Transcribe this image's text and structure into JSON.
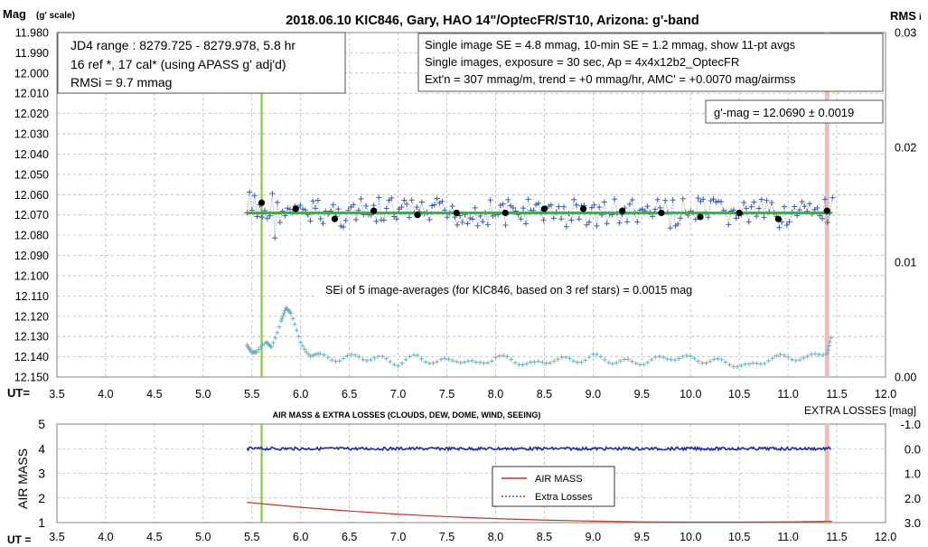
{
  "title": "2018.06.10  KIC846,  Gary,  HAO 14\"/OptecFR/ST10,  Arizona:  g'-band",
  "top_chart": {
    "ylabel_left": "Mag",
    "ylabel_left_sub": "(g' scale)",
    "ylabel_right": "RMS",
    "ylabel_right_sub": "i",
    "xlabel": "UT=",
    "info_left": [
      "JD4 range : 8279.725 - 8279.978,  5.8  hr",
      "16 ref *, 17 cal* (using APASS g' adj'd)",
      "RMSi = 9.7 mmag"
    ],
    "info_right": [
      "Single image SE = 4.8 mmag, 10-min SE = 1.2 mmag, show  11-pt avgs",
      "Single images, exposure = 30 sec, Ap = 4x4x12b2_OptecFR",
      "Ext'n = 307 mmag/m, trend =  +0 mmag/hr, AMC' = +0.0070 mag/airmss"
    ],
    "gmag_box": "g'-mag = 12.0690 ± 0.0019",
    "sei_note": "SEi of 5 image-averages (for KIC846, based on 3 ref stars) = 0.0015  mag"
  },
  "bottom_chart": {
    "title": "AIR MASS & EXTRA LOSSES (CLOUDS, DEW, DOME, WIND, SEEING)",
    "ylabel_left": "AIR MASS",
    "ylabel_right": "EXTRA LOSSES [mag]",
    "xlabel": "UT =",
    "legend": [
      "AIR MASS",
      "Extra Losses"
    ]
  },
  "colors": {
    "points": "#3a5fa8",
    "avg": "#000000",
    "fit": "#4fa35a",
    "rms": "#6fb0bf",
    "green_marker": "#8cc63f",
    "pink_marker": "#f3b9bb",
    "airmass": "#c0392b",
    "losses": "#1f2f9a",
    "grid": "#b8b8b8"
  },
  "chart_data": [
    {
      "type": "scatter",
      "x_ticks": [
        "3.5",
        "4.0",
        "4.5",
        "5.0",
        "5.5",
        "6.0",
        "6.5",
        "7.0",
        "7.5",
        "8.0",
        "8.5",
        "9.0",
        "9.5",
        "10.0",
        "10.5",
        "11.0",
        "11.5",
        "12.0"
      ],
      "y_ticks": [
        "11.980",
        "11.990",
        "12.000",
        "12.010",
        "12.020",
        "12.030",
        "12.040",
        "12.050",
        "12.060",
        "12.070",
        "12.080",
        "12.090",
        "12.100",
        "12.110",
        "12.120",
        "12.130",
        "12.140",
        "12.150"
      ],
      "y2_ticks": [
        "0.03",
        "0.02",
        "0.01",
        "0.00"
      ],
      "xlim": [
        3.5,
        12.0
      ],
      "ylim": [
        11.98,
        12.15
      ],
      "y_inverted": true,
      "y2lim": [
        0,
        0.03
      ],
      "vertical_markers": [
        5.6,
        11.4
      ],
      "fit_line": {
        "x": [
          5.45,
          11.45
        ],
        "y": [
          12.069,
          12.069
        ]
      },
      "series": [
        {
          "name": "11-pt avgs",
          "x": [
            5.6,
            5.95,
            6.35,
            6.75,
            7.2,
            7.6,
            8.1,
            8.5,
            8.9,
            9.3,
            9.7,
            10.1,
            10.5,
            10.9,
            11.4
          ],
          "y": [
            12.064,
            12.067,
            12.072,
            12.068,
            12.07,
            12.069,
            12.069,
            12.067,
            12.067,
            12.068,
            12.069,
            12.071,
            12.069,
            12.072,
            12.068
          ]
        },
        {
          "x": [
            5.45,
            5.5,
            5.55,
            5.65,
            5.7,
            5.8,
            5.85,
            5.9,
            6.0,
            6.1,
            6.2,
            6.4,
            6.6,
            6.8,
            7.0,
            7.2,
            7.4,
            7.6,
            7.8,
            8.0,
            8.2,
            8.4,
            8.6,
            8.8,
            9.0,
            9.2,
            9.4,
            9.6,
            9.8,
            10.0,
            10.2,
            10.4,
            10.6,
            10.8,
            11.0,
            11.2,
            11.4,
            11.45
          ],
          "y": [
            12.133,
            12.138,
            12.139,
            12.133,
            12.134,
            12.122,
            12.117,
            12.12,
            12.132,
            12.139,
            12.14,
            12.141,
            12.14,
            12.141,
            12.143,
            12.14,
            12.143,
            12.141,
            12.144,
            12.14,
            12.142,
            12.144,
            12.141,
            12.142,
            12.14,
            12.142,
            12.143,
            12.142,
            12.14,
            12.141,
            12.142,
            12.143,
            12.145,
            12.141,
            12.14,
            12.141,
            12.137,
            12.128
          ]
        }
      ]
    },
    {
      "type": "line",
      "title": "AIR MASS & EXTRA LOSSES (CLOUDS, DEW, DOME, WIND, SEEING)",
      "x_ticks": [
        "3.5",
        "4.0",
        "4.5",
        "5.0",
        "5.5",
        "6.0",
        "6.5",
        "7.0",
        "7.5",
        "8.0",
        "8.5",
        "9.0",
        "9.5",
        "10.0",
        "10.5",
        "11.0",
        "11.5",
        "12.0"
      ],
      "y_ticks": [
        "5",
        "4",
        "3",
        "2",
        "1"
      ],
      "y2_ticks": [
        "-1.0",
        "0.0",
        "1.0",
        "2.0",
        "3.0"
      ],
      "xlim": [
        3.5,
        12.0
      ],
      "ylim": [
        1,
        5
      ],
      "y2lim": [
        -1.0,
        3.0
      ],
      "y2_inverted": true,
      "series": [
        {
          "name": "AIR MASS",
          "x": [
            5.45,
            6.0,
            6.5,
            7.0,
            7.5,
            8.0,
            8.5,
            9.0,
            9.5,
            10.0,
            10.5,
            11.0,
            11.45
          ],
          "y": [
            1.82,
            1.62,
            1.47,
            1.34,
            1.24,
            1.16,
            1.1,
            1.06,
            1.03,
            1.02,
            1.02,
            1.03,
            1.05
          ]
        },
        {
          "name": "Extra Losses",
          "x": [
            5.45,
            11.45
          ],
          "y": [
            0.0,
            0.0
          ]
        }
      ]
    }
  ]
}
